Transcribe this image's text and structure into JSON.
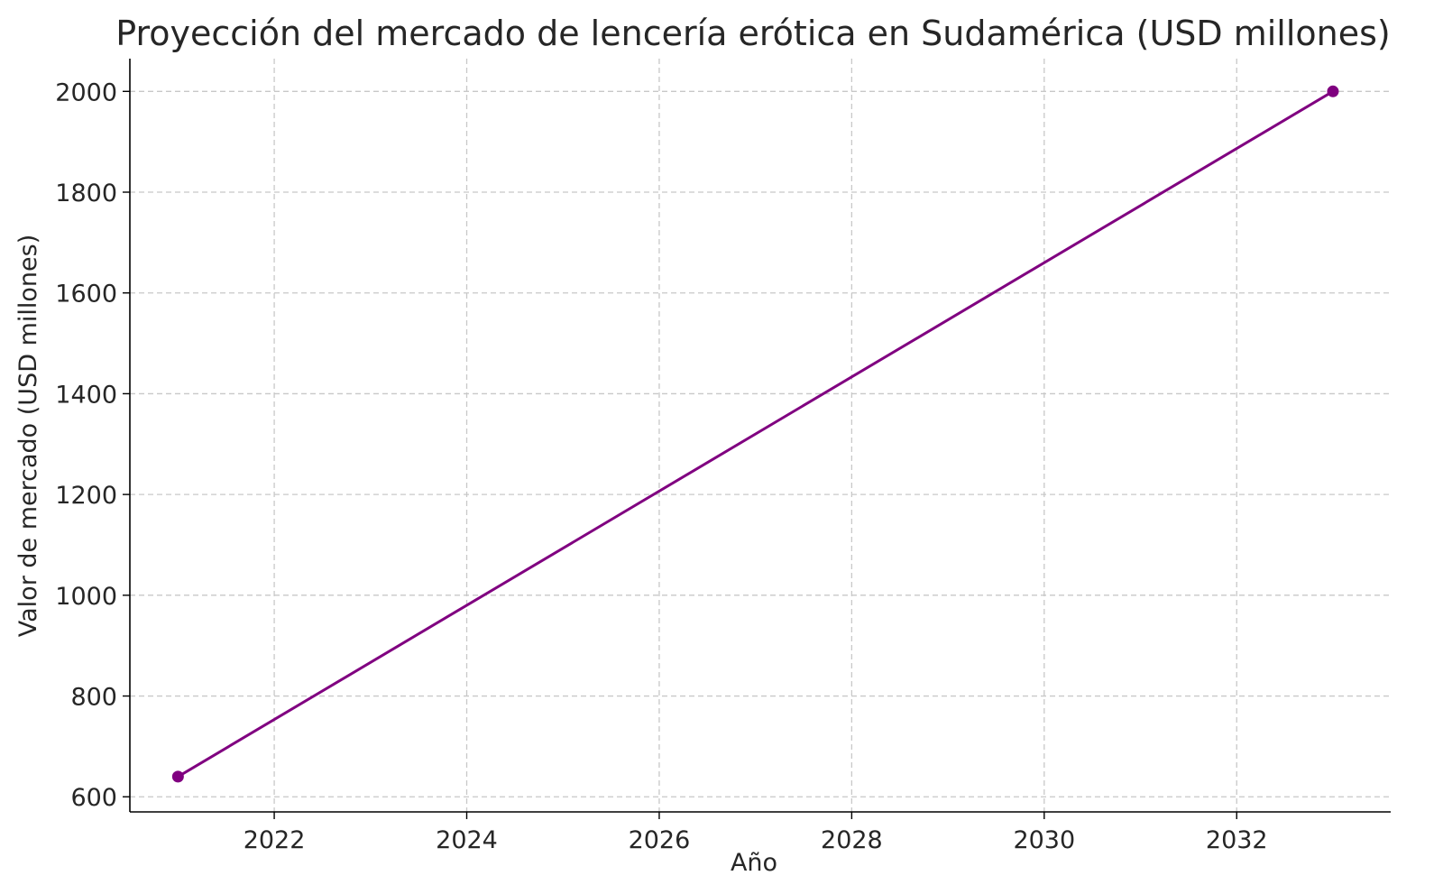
{
  "chart_data": {
    "type": "line",
    "title": "Proyección del mercado de lencería erótica en Sudamérica (USD millones)",
    "xlabel": "Año",
    "ylabel": "Valor de mercado (USD millones)",
    "xlim": [
      2020.5,
      2033.6
    ],
    "ylim": [
      570,
      2065
    ],
    "xticks": [
      2022,
      2024,
      2026,
      2028,
      2030,
      2032
    ],
    "yticks": [
      600,
      800,
      1000,
      1200,
      1400,
      1600,
      1800,
      2000
    ],
    "grid": true,
    "legend": "none",
    "series": [
      {
        "color": "#800080",
        "x": [
          2021,
          2033
        ],
        "y": [
          640,
          2000
        ]
      }
    ]
  }
}
